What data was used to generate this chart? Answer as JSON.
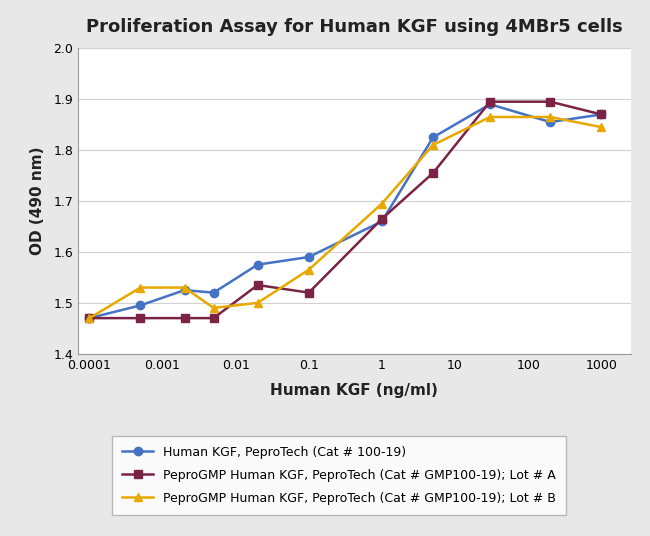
{
  "title": "Proliferation Assay for Human KGF using 4MBr5 cells",
  "xlabel": "Human KGF (ng/ml)",
  "ylabel": "OD (490 nm)",
  "ylim": [
    1.4,
    2.0
  ],
  "series": [
    {
      "label": "Human KGF, PeproTech (Cat # 100-19)",
      "color": "#4472C4",
      "marker": "o",
      "markersize": 6,
      "x": [
        0.0001,
        0.0005,
        0.002,
        0.005,
        0.02,
        0.1,
        1,
        5,
        30,
        200,
        1000
      ],
      "y": [
        1.47,
        1.495,
        1.525,
        1.52,
        1.575,
        1.59,
        1.66,
        1.825,
        1.89,
        1.855,
        1.87
      ]
    },
    {
      "label": "PeproGMP Human KGF, PeproTech (Cat # GMP100-19); Lot # A",
      "color": "#7B2346",
      "marker": "s",
      "markersize": 6,
      "x": [
        0.0001,
        0.0005,
        0.002,
        0.005,
        0.02,
        0.1,
        1,
        5,
        30,
        200,
        1000
      ],
      "y": [
        1.47,
        1.47,
        1.47,
        1.47,
        1.535,
        1.52,
        1.665,
        1.755,
        1.895,
        1.895,
        1.87
      ]
    },
    {
      "label": "PeproGMP Human KGF, PeproTech (Cat # GMP100-19); Lot # B",
      "color": "#E8A800",
      "marker": "^",
      "markersize": 6,
      "x": [
        0.0001,
        0.0005,
        0.002,
        0.005,
        0.02,
        0.1,
        1,
        5,
        30,
        200,
        1000
      ],
      "y": [
        1.47,
        1.53,
        1.53,
        1.49,
        1.5,
        1.565,
        1.695,
        1.81,
        1.865,
        1.865,
        1.845
      ]
    }
  ],
  "fig_background": "#e8e8e8",
  "plot_background": "#ffffff",
  "grid_color": "#d0d0d0",
  "legend_fontsize": 9,
  "title_fontsize": 13,
  "axis_label_fontsize": 11,
  "tick_fontsize": 9
}
